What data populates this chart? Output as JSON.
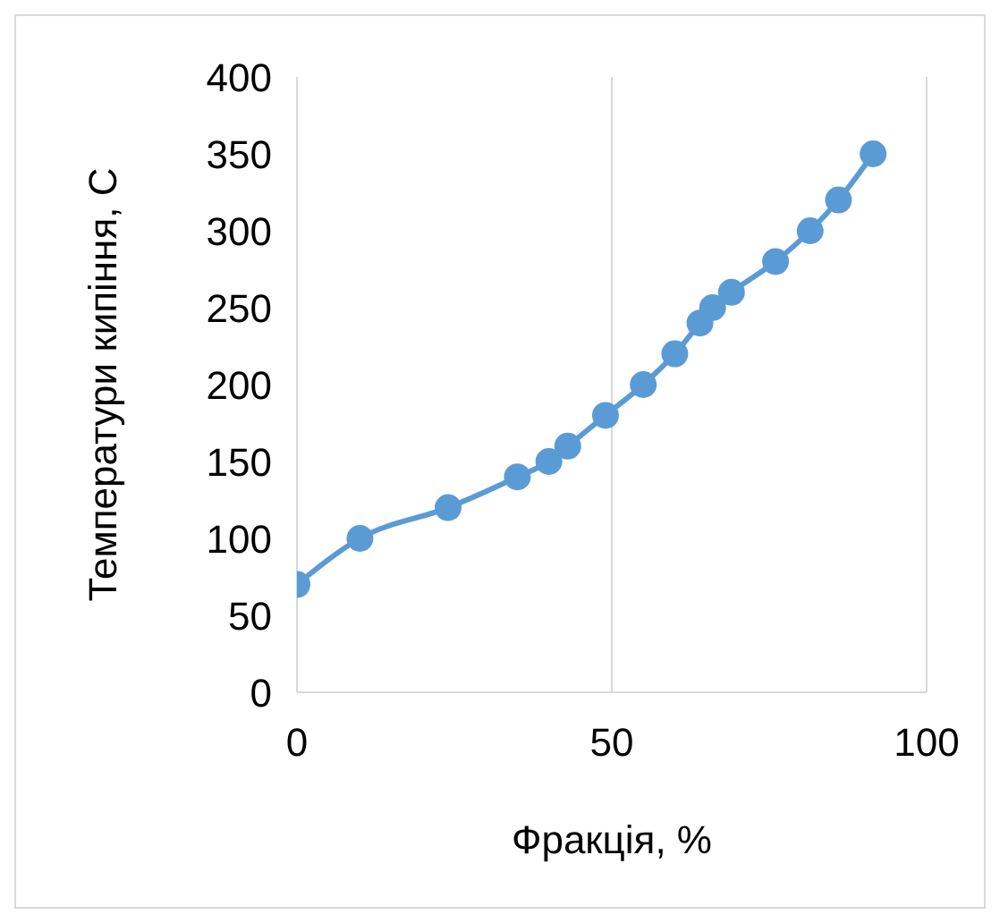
{
  "chart_data": {
    "type": "line",
    "xlabel": "Фракція, %",
    "ylabel": "Температури кипіння, С",
    "x": [
      0,
      10,
      24,
      35,
      40,
      43,
      49,
      55,
      60,
      64,
      66,
      69,
      76,
      81.5,
      86,
      91.5
    ],
    "series": [
      {
        "color": "#5b9bd5",
        "values": [
          70,
          100,
          120,
          140,
          150,
          160,
          180,
          200,
          220,
          240,
          250,
          260,
          280,
          300,
          320,
          350
        ]
      }
    ],
    "xlim": [
      0,
      100
    ],
    "xticks": [
      0,
      50,
      100
    ],
    "ylim": [
      0,
      400
    ],
    "yticks": [
      0,
      50,
      100,
      150,
      200,
      250,
      300,
      350,
      400
    ],
    "grid": "x",
    "marker": "circle",
    "line_style": "solid",
    "legend": false
  }
}
